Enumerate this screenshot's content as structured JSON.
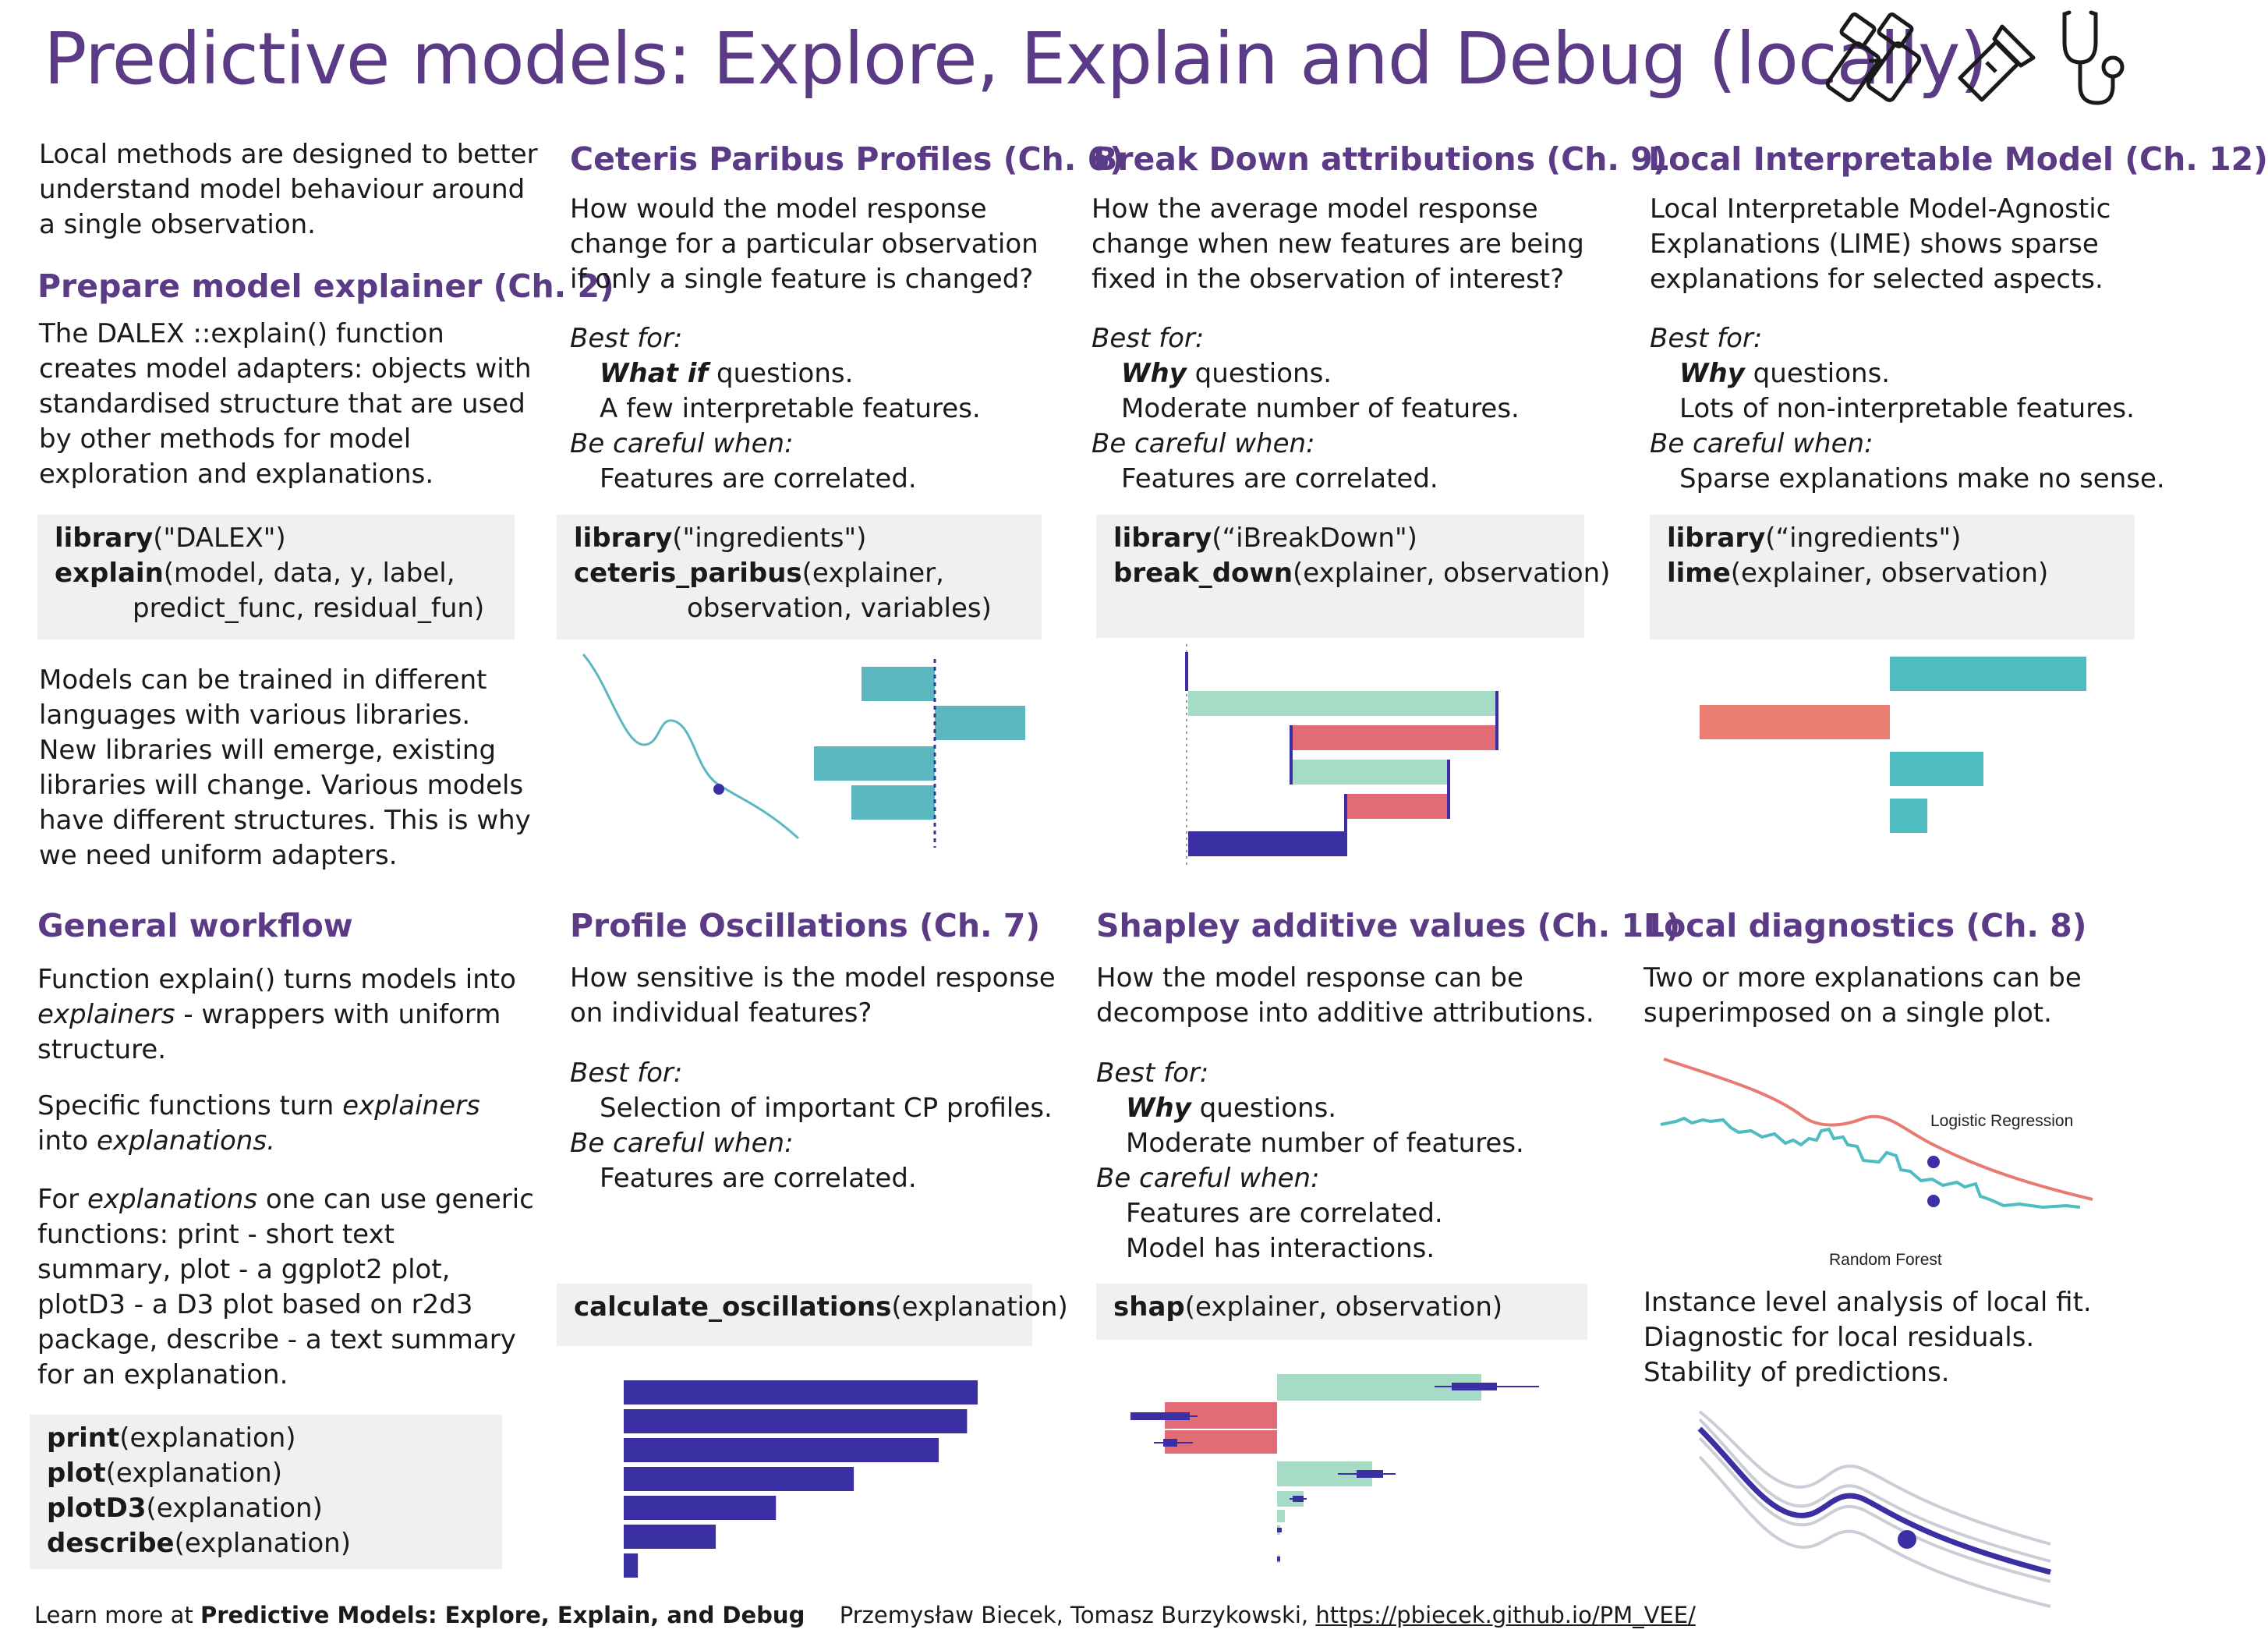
{
  "title": "Predictive models: Explore, Explain and Debug (locally)",
  "colors": {
    "accent": "#5b3a86",
    "teal": "#5cb8c0",
    "mint": "#a6dcc6",
    "salmon": "#e77b72",
    "pink": "#e16c76",
    "indigo": "#3a2fa3",
    "code_bg": "#f0f0f0"
  },
  "icons": [
    "binoculars-icon",
    "flashlight-icon",
    "stethoscope-icon"
  ],
  "intro": {
    "lines": [
      "Local methods are designed to better",
      "understand model behaviour around",
      "a single observation."
    ]
  },
  "prepare": {
    "heading": "Prepare model explainer (Ch. 2)",
    "lines": [
      "The DALEX ::explain() function",
      "creates model adapters: objects with",
      "standardised structure that are used",
      "by other methods for model",
      "exploration and explanations."
    ],
    "code": [
      {
        "fn": "library",
        "args": "(\"DALEX\")"
      },
      {
        "fn": "explain",
        "args": "(model, data, y, label,"
      },
      {
        "fn": "",
        "args": "predict_func, residual_fun)"
      }
    ],
    "after": [
      "Models can be trained in different",
      "languages with various libraries.",
      "New libraries will emerge, existing",
      "libraries will change. Various models",
      "have different structures. This is why",
      "we need uniform adapters."
    ]
  },
  "workflow": {
    "heading": "General workflow",
    "p1": [
      "Function explain() turns models into",
      "explainers",
      " - wrappers with uniform",
      "structure."
    ],
    "p2": [
      "Specific functions turn ",
      "explainers",
      "into ",
      "explanations."
    ],
    "p3": [
      "For ",
      "explanations",
      " one can use generic",
      "functions: print - short text",
      "summary, plot - a ggplot2 plot,",
      "plotD3 - a D3 plot based on r2d3",
      "package, describe - a text summary",
      "for an explanation."
    ],
    "code": [
      {
        "fn": "print",
        "args": "(explanation)"
      },
      {
        "fn": "plot",
        "args": "(explanation)"
      },
      {
        "fn": "plotD3",
        "args": "(explanation)"
      },
      {
        "fn": "describe",
        "args": "(explanation)"
      }
    ]
  },
  "labels": {
    "best_for": "Best for:",
    "careful": "Be careful when:"
  },
  "cp": {
    "heading": "Ceteris Paribus Profiles (Ch. 6)",
    "lines": [
      "How would the model response",
      "change for a particular observation",
      "if only a single feature is changed?"
    ],
    "best": [
      {
        "em": "What if",
        "rest": " questions."
      },
      {
        "em": "",
        "rest": "A few interpretable features."
      }
    ],
    "careful": [
      "Features are correlated."
    ],
    "code": [
      {
        "fn": "library",
        "args": "(\"ingredients\")"
      },
      {
        "fn": "ceteris_paribus",
        "args": "(explainer,"
      },
      {
        "fn": "",
        "args": "observation, variables)"
      }
    ]
  },
  "bd": {
    "heading": "Break Down attributions (Ch. 9)",
    "lines": [
      "How the average model response",
      "change when new features are being",
      "fixed in the observation of interest?"
    ],
    "best": [
      {
        "em": "Why",
        "rest": " questions."
      },
      {
        "em": "",
        "rest": "Moderate number of features."
      }
    ],
    "careful": [
      "Features are correlated."
    ],
    "code": [
      {
        "fn": "library",
        "args": "(“iBreakDown\")"
      },
      {
        "fn": "break_down",
        "args": "(explainer, observation)"
      }
    ]
  },
  "lime": {
    "heading": "Local Interpretable Model (Ch. 12)",
    "lines": [
      "Local Interpretable Model-Agnostic",
      "Explanations (LIME) shows sparse",
      "explanations for selected aspects."
    ],
    "best": [
      {
        "em": "Why",
        "rest": " questions."
      },
      {
        "em": "",
        "rest": "Lots of non-interpretable features."
      }
    ],
    "careful": [
      "Sparse explanations make no sense."
    ],
    "code": [
      {
        "fn": "library",
        "args": "(“ingredients\")"
      },
      {
        "fn": "lime",
        "args": "(explainer, observation)"
      }
    ]
  },
  "osc": {
    "heading": "Profile Oscillations (Ch. 7)",
    "lines": [
      "How sensitive is the model response",
      "on individual features?"
    ],
    "best": [
      {
        "em": "",
        "rest": "Selection of important CP profiles."
      }
    ],
    "careful": [
      "Features are correlated."
    ],
    "code": [
      {
        "fn": "calculate_oscillations",
        "args": "(explanation)"
      }
    ],
    "bars": [
      100,
      97,
      89,
      65,
      43,
      26,
      4
    ]
  },
  "shap": {
    "heading": "Shapley additive values (Ch. 11)",
    "lines": [
      "How the model response can be",
      "decompose into additive attributions."
    ],
    "best": [
      {
        "em": "Why",
        "rest": " questions."
      },
      {
        "em": "",
        "rest": "Moderate number of features."
      }
    ],
    "careful": [
      "Features are correlated.",
      "Model has interactions."
    ],
    "code": [
      {
        "fn": "shap",
        "args": "(explainer, observation)"
      }
    ]
  },
  "diag": {
    "heading": "Local diagnostics (Ch. 8)",
    "lines": [
      "Two or more explanations can be",
      "superimposed on a single plot."
    ],
    "legend_lr": "Logistic Regression",
    "legend_rf": "Random Forest",
    "after": [
      "Instance level analysis of local fit.",
      "Diagnostic for local residuals.",
      "Stability of predictions."
    ]
  },
  "footer": {
    "prefix": "Learn more at ",
    "book": "Predictive Models: Explore, Explain, and Debug",
    "authors": "Przemysław Biecek, Tomasz Burzykowski,",
    "url": "https://pbiecek.github.io/PM_VEE/"
  }
}
